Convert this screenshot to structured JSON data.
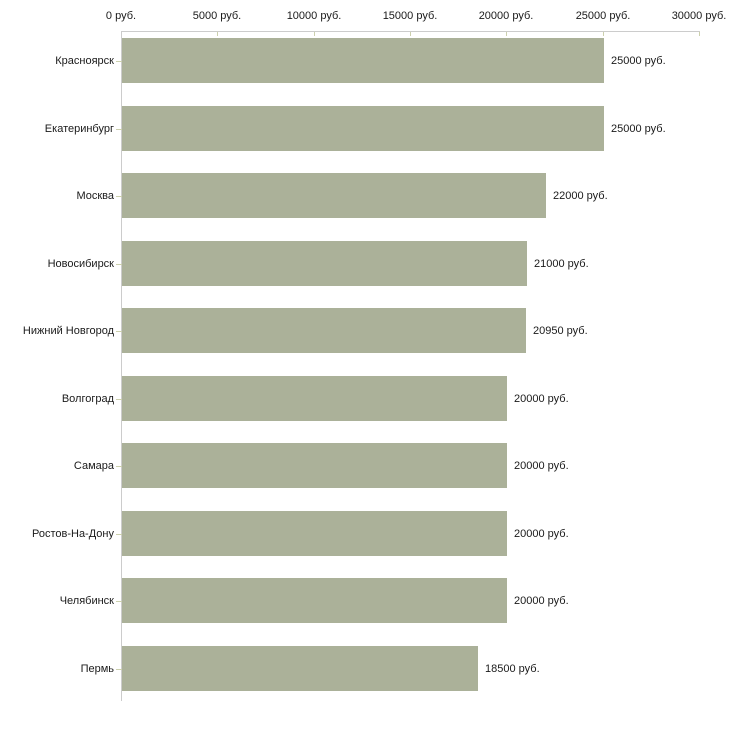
{
  "chart_data": {
    "type": "bar",
    "orientation": "horizontal",
    "title": "",
    "categories": [
      "Красноярск",
      "Екатеринбург",
      "Москва",
      "Новосибирск",
      "Нижний Новгород",
      "Волгоград",
      "Самара",
      "Ростов-На-Дону",
      "Челябинск",
      "Пермь"
    ],
    "values": [
      25000,
      25000,
      22000,
      21000,
      20950,
      20000,
      20000,
      20000,
      20000,
      18500
    ],
    "value_labels": [
      "25000 руб.",
      "25000 руб.",
      "22000 руб.",
      "21000 руб.",
      "20950 руб.",
      "20000 руб.",
      "20000 руб.",
      "20000 руб.",
      "20000 руб.",
      "18500 руб."
    ],
    "unit": "руб.",
    "x_axis": {
      "position": "top",
      "min": 0,
      "max": 30000,
      "step": 5000,
      "tick_labels": [
        "0 руб.",
        "5000 руб.",
        "10000 руб.",
        "15000 руб.",
        "20000 руб.",
        "25000 руб.",
        "30000 руб."
      ]
    },
    "grid": false,
    "legend": false,
    "colors": {
      "bar": "#abb199",
      "axis_line": "#cccccc",
      "tick": "#ccd0ad",
      "text": "#1a1a1a",
      "background": "#ffffff"
    }
  }
}
